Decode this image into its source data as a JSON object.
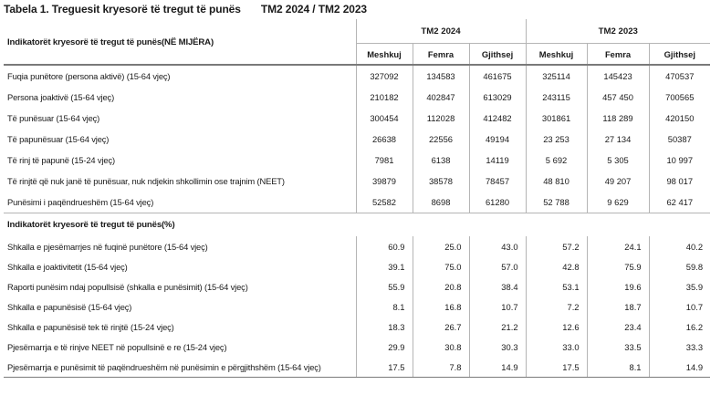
{
  "title": {
    "main": "Tabela 1. Treguesit kryesorë të tregut të punës",
    "period": "TM2 2024 / TM2 2023"
  },
  "table": {
    "indicators_header": "Indikatorët kryesorë të tregut të punës(NË MIJËRA)",
    "groups": [
      "TM2 2024",
      "TM2 2023"
    ],
    "columns": [
      "Meshkuj",
      "Femra",
      "Gjithsej",
      "Meshkuj",
      "Femra",
      "Gjithsej"
    ],
    "rows": [
      {
        "label": "Fuqia punëtore (persona aktivë) (15-64 vjeç)",
        "values": [
          "327092",
          "134583",
          "461675",
          "325114",
          "145423",
          "470537"
        ]
      },
      {
        "label": "Persona joaktivë (15-64 vjeç)",
        "values": [
          "210182",
          "402847",
          "613029",
          "243115",
          "457 450",
          "700565"
        ]
      },
      {
        "label": "Të punësuar (15-64 vjeç)",
        "values": [
          "300454",
          "112028",
          "412482",
          "301861",
          "118 289",
          "420150"
        ]
      },
      {
        "label": "Të papunësuar (15-64 vjeç)",
        "values": [
          "26638",
          "22556",
          "49194",
          "23 253",
          "27 134",
          "50387"
        ]
      },
      {
        "label": "Të rinj të papunë (15-24 vjeç)",
        "values": [
          "7981",
          "6138",
          "14119",
          "5 692",
          "5 305",
          "10 997"
        ]
      },
      {
        "label": "Të rinjtë që nuk janë të punësuar, nuk ndjekin shkollimin ose trajnim (NEET)",
        "values": [
          "39879",
          "38578",
          "78457",
          "48 810",
          "49 207",
          "98 017"
        ]
      },
      {
        "label": "Punësimi i paqëndrueshëm (15-64 vjeç)",
        "values": [
          "52582",
          "8698",
          "61280",
          "52 788",
          "9 629",
          "62 417"
        ]
      }
    ],
    "section_rates_header": "Indikatorët kryesorë të tregut të punës(%)",
    "rate_rows": [
      {
        "label": "Shkalla e pjesëmarrjes në fuqinë punëtore (15-64 vjeç)",
        "values": [
          "60.9",
          "25.0",
          "43.0",
          "57.2",
          "24.1",
          "40.2"
        ]
      },
      {
        "label": "Shkalla e joaktivitetit (15-64 vjeç)",
        "values": [
          "39.1",
          "75.0",
          "57.0",
          "42.8",
          "75.9",
          "59.8"
        ]
      },
      {
        "label": "Raporti punësim ndaj popullsisë (shkalla e punësimit) (15-64 vjeç)",
        "values": [
          "55.9",
          "20.8",
          "38.4",
          "53.1",
          "19.6",
          "35.9"
        ]
      },
      {
        "label": "Shkalla e papunësisë (15-64 vjeç)",
        "values": [
          "8.1",
          "16.8",
          "10.7",
          "7.2",
          "18.7",
          "10.7"
        ]
      },
      {
        "label": "Shkalla e papunësisë tek të rinjtë (15-24 vjeç)",
        "values": [
          "18.3",
          "26.7",
          "21.2",
          "12.6",
          "23.4",
          "16.2"
        ]
      },
      {
        "label": "Pjesëmarrja e të rinjve NEET në popullsinë e re (15-24 vjeç)",
        "values": [
          "29.9",
          "30.8",
          "30.3",
          "33.0",
          "33.5",
          "33.3"
        ]
      },
      {
        "label": "Pjesëmarrja e punësimit të paqëndrueshëm në punësimin e përgjithshëm (15-64 vjeç)",
        "values": [
          "17.5",
          "7.8",
          "14.9",
          "17.5",
          "8.1",
          "14.9"
        ]
      }
    ]
  }
}
